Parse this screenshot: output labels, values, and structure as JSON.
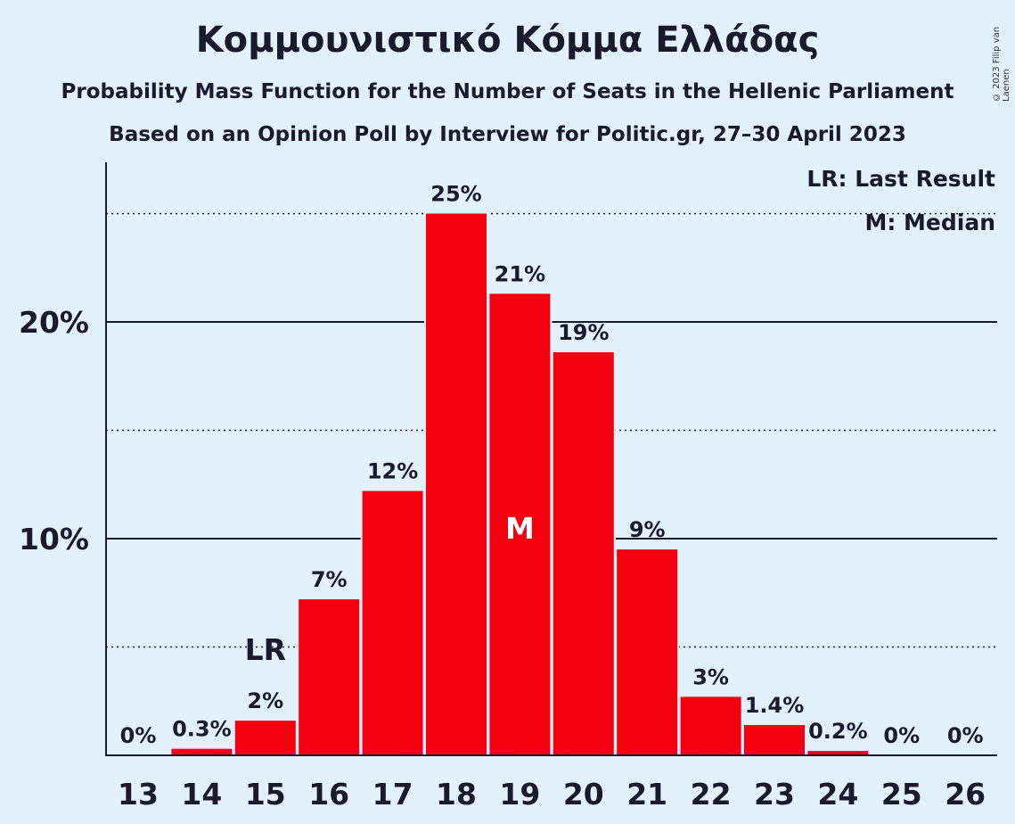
{
  "title": "Κομμουνιστικό Κόμμα Ελλάδας",
  "subtitle": "Probability Mass Function for the Number of Seats in the Hellenic Parliament",
  "subtitle2": "Based on an Opinion Poll by Interview for Politic.gr, 27–30 April 2023",
  "copyright": "© 2023 Filip van Laenen",
  "legend": {
    "last_result": "LR: Last Result",
    "median": "M: Median"
  },
  "colors": {
    "bar": "#f5000f",
    "background": "#e3f1fc"
  },
  "chart_data": {
    "type": "bar",
    "categories": [
      "13",
      "14",
      "15",
      "16",
      "17",
      "18",
      "19",
      "20",
      "21",
      "22",
      "23",
      "24",
      "25",
      "26"
    ],
    "values": [
      0,
      0.3,
      1.6,
      7.2,
      12.2,
      25.0,
      21.3,
      18.6,
      9.5,
      2.7,
      1.4,
      0.2,
      0,
      0
    ],
    "data_labels": [
      "0%",
      "0.3%",
      "2%",
      "7%",
      "12%",
      "25%",
      "21%",
      "19%",
      "9%",
      "3%",
      "1.4%",
      "0.2%",
      "0%",
      "0%"
    ],
    "yticks": [
      {
        "value": 10,
        "label": "10%"
      },
      {
        "value": 20,
        "label": "20%"
      }
    ],
    "dotted_gridlines": [
      5,
      15,
      25
    ],
    "ylim": [
      0,
      27.5
    ],
    "last_result": {
      "category": "15",
      "label": "LR"
    },
    "median": {
      "category": "19",
      "label": "M"
    },
    "legend_position": "top-right"
  }
}
